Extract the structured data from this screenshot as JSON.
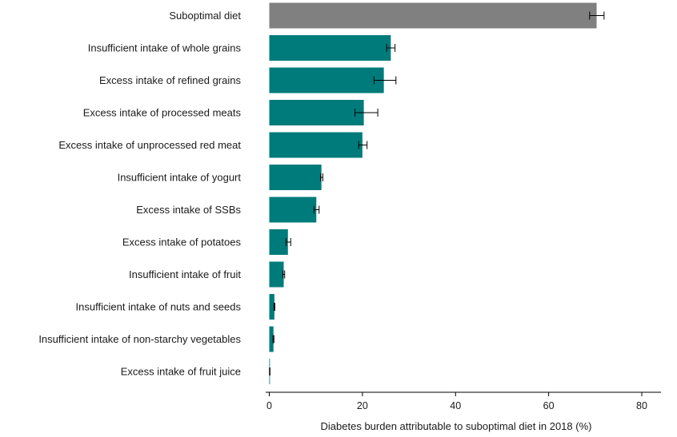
{
  "chart_data": {
    "type": "bar",
    "orientation": "horizontal",
    "title": "",
    "xlabel": "Diabetes burden attributable to suboptimal diet in 2018 (%)",
    "ylabel": "",
    "xlim": [
      0,
      84
    ],
    "xticks": [
      0,
      20,
      40,
      60,
      80
    ],
    "grid": false,
    "legend": "none",
    "colors": {
      "total": "#808080",
      "component": "#007b7b",
      "error_bar": "#000000"
    },
    "categories": [
      "Suboptimal diet",
      "Insufficient intake of whole grains",
      "Excess intake of refined grains",
      "Excess intake of processed meats",
      "Excess intake of unprocessed red meat",
      "Insufficient intake of yogurt",
      "Excess intake of SSBs",
      "Excess intake of potatoes",
      "Insufficient intake of fruit",
      "Insufficient intake of nuts and seeds",
      "Insufficient intake of non-starchy vegetables",
      "Excess intake of fruit juice"
    ],
    "values": [
      70.3,
      26.1,
      24.6,
      20.3,
      20.0,
      11.2,
      10.1,
      4.0,
      3.1,
      1.1,
      0.9,
      0.1
    ],
    "error_low": [
      68.8,
      25.2,
      22.5,
      18.4,
      19.2,
      11.0,
      9.6,
      3.6,
      2.9,
      1.0,
      0.8,
      0.05
    ],
    "error_high": [
      71.9,
      27.0,
      27.2,
      23.3,
      21.0,
      11.5,
      10.7,
      4.6,
      3.3,
      1.2,
      1.0,
      0.15
    ]
  }
}
